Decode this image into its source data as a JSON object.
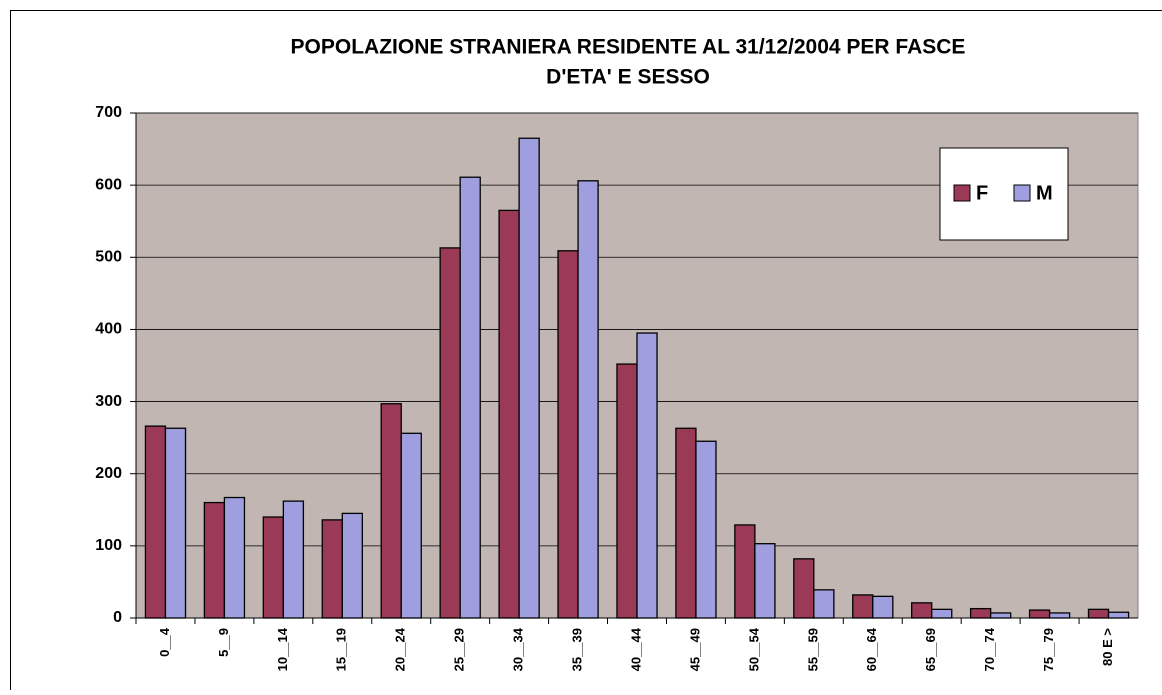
{
  "chart_data": {
    "type": "bar",
    "title": [
      "POPOLAZIONE STRANIERA RESIDENTE AL 31/12/2004 PER FASCE",
      "D'ETA' E SESSO"
    ],
    "categories": [
      "0__4",
      "5__9",
      "10__14",
      "15__19",
      "20__24",
      "25__29",
      "30__34",
      "35__39",
      "40__44",
      "45__49",
      "50__54",
      "55__59",
      "60__64",
      "65__69",
      "70__74",
      "75__79",
      "80 E >"
    ],
    "series": [
      {
        "name": "F",
        "color": "#9b3a57",
        "values": [
          266,
          160,
          140,
          136,
          297,
          513,
          565,
          509,
          352,
          263,
          129,
          82,
          32,
          21,
          13,
          11,
          12
        ]
      },
      {
        "name": "M",
        "color": "#9f9fe0",
        "values": [
          263,
          167,
          162,
          145,
          256,
          611,
          665,
          606,
          395,
          245,
          103,
          39,
          30,
          12,
          7,
          7,
          8
        ]
      }
    ],
    "ylim": [
      0,
      700
    ],
    "yticks": [
      0,
      100,
      200,
      300,
      400,
      500,
      600,
      700
    ],
    "grid": true,
    "legend": "upper right",
    "plot_background": "#c1b6b2"
  }
}
